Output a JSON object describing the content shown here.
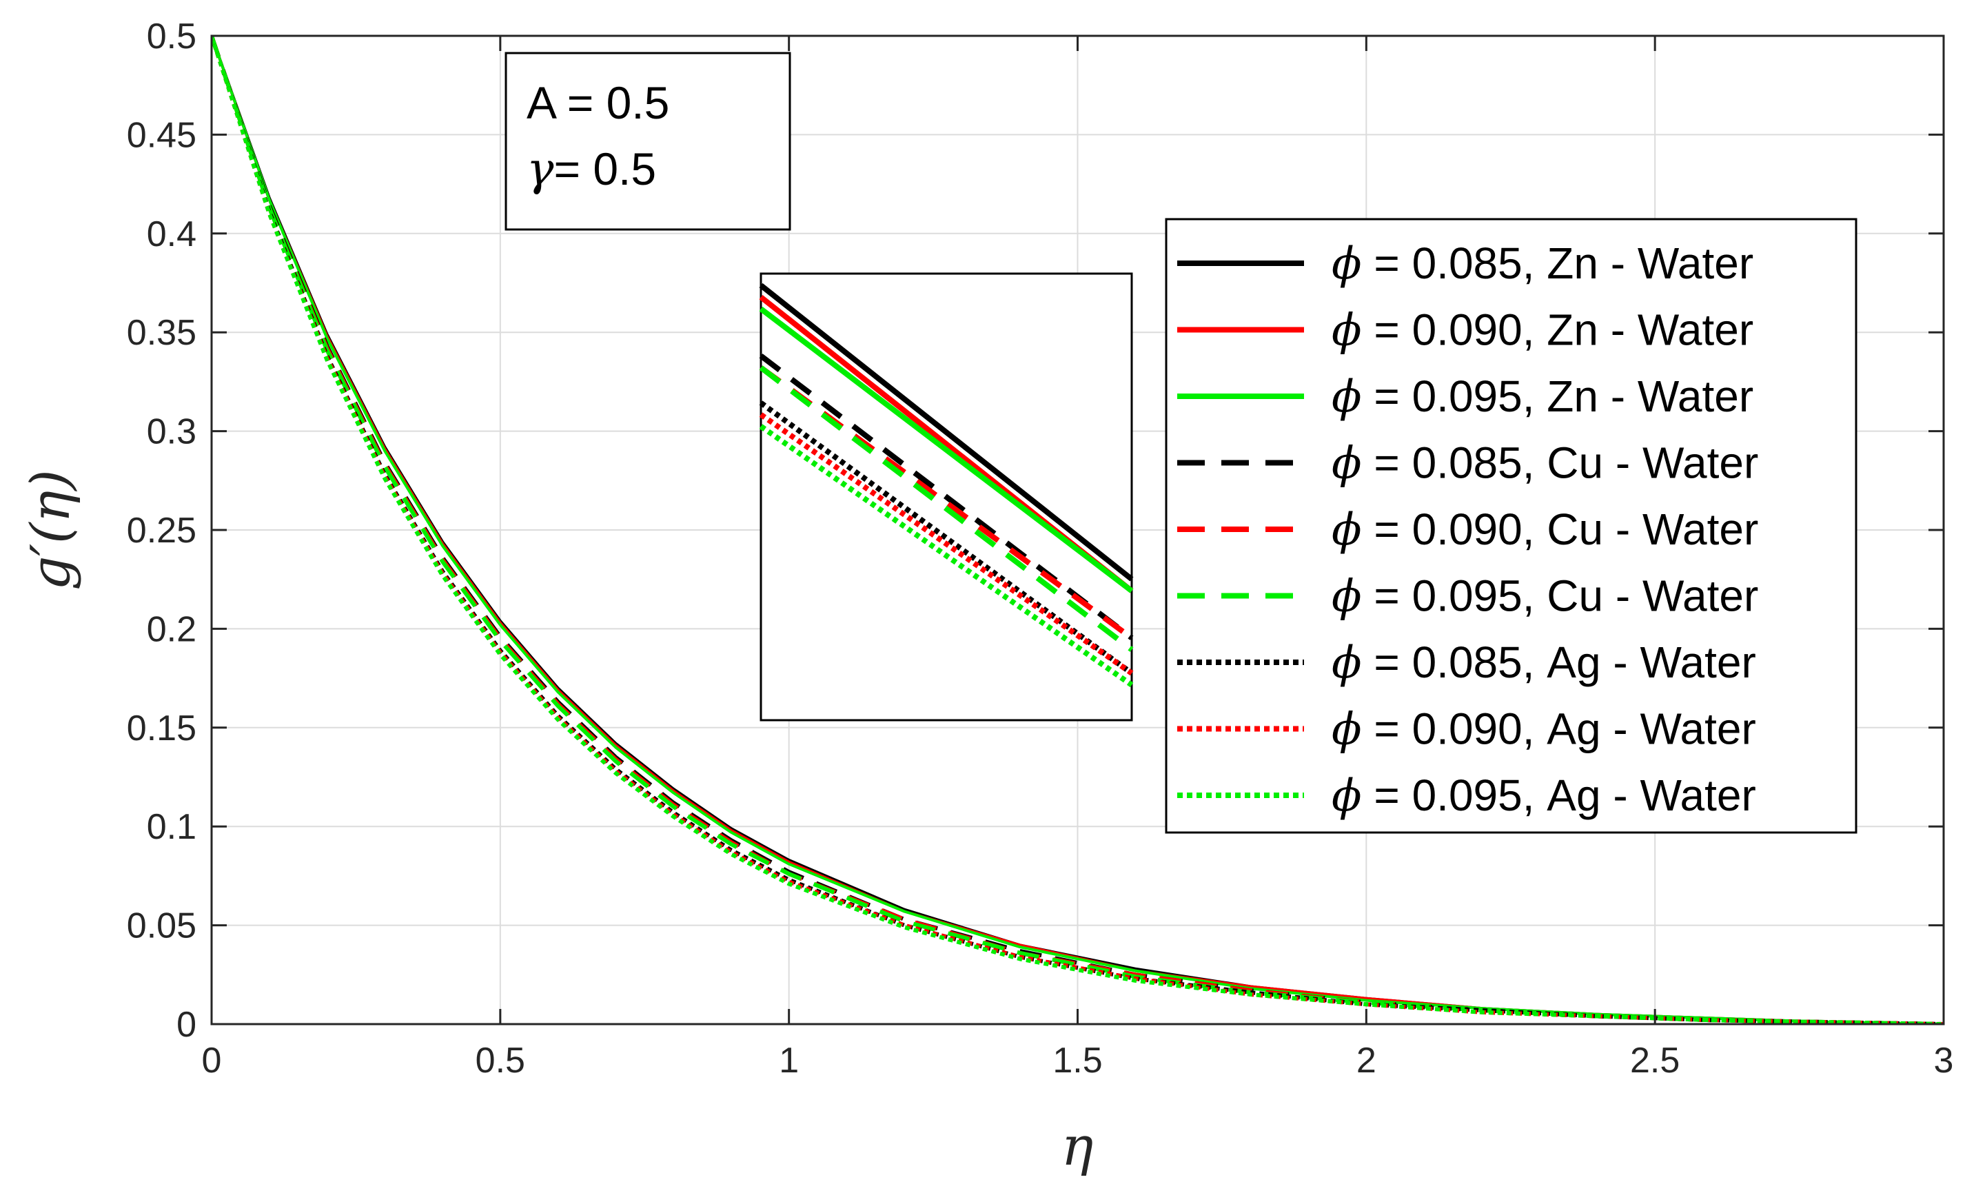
{
  "chart_data": {
    "type": "line",
    "title": "",
    "xlabel": "η",
    "ylabel": "g′(η)",
    "xlim": [
      0,
      3
    ],
    "ylim": [
      0,
      0.5
    ],
    "xticks": [
      0,
      0.5,
      1,
      1.5,
      2,
      2.5,
      3
    ],
    "xtick_labels": [
      "0",
      "0.5",
      "1",
      "1.5",
      "2",
      "2.5",
      "3"
    ],
    "yticks": [
      0,
      0.05,
      0.1,
      0.15,
      0.2,
      0.25,
      0.3,
      0.35,
      0.4,
      0.45,
      0.5
    ],
    "ytick_labels": [
      "0",
      "0.05",
      "0.1",
      "0.15",
      "0.2",
      "0.25",
      "0.3",
      "0.35",
      "0.4",
      "0.45",
      "0.5"
    ],
    "grid": true,
    "legend_position": "right",
    "x": [
      0,
      0.1,
      0.2,
      0.3,
      0.4,
      0.5,
      0.6,
      0.7,
      0.8,
      0.9,
      1.0,
      1.2,
      1.4,
      1.6,
      1.8,
      2.0,
      2.2,
      2.4,
      2.6,
      2.8,
      3.0
    ],
    "series": [
      {
        "name": "ϕ = 0.085, Zn - Water",
        "phi": "ϕ",
        "rest": " = 0.085, Zn - Water",
        "color": "#000000",
        "style": "solid",
        "values": [
          0.5,
          0.418,
          0.349,
          0.292,
          0.244,
          0.204,
          0.17,
          0.142,
          0.119,
          0.099,
          0.083,
          0.058,
          0.04,
          0.028,
          0.019,
          0.013,
          0.008,
          0.005,
          0.003,
          0.001,
          0.0
        ]
      },
      {
        "name": "ϕ = 0.090, Zn - Water",
        "phi": "ϕ",
        "rest": " = 0.090, Zn - Water",
        "color": "#ff0000",
        "style": "solid",
        "values": [
          0.5,
          0.417,
          0.348,
          0.291,
          0.243,
          0.203,
          0.169,
          0.141,
          0.118,
          0.098,
          0.082,
          0.057,
          0.04,
          0.027,
          0.019,
          0.013,
          0.008,
          0.005,
          0.003,
          0.001,
          0.0
        ]
      },
      {
        "name": "ϕ = 0.095, Zn - Water",
        "phi": "ϕ",
        "rest": " = 0.095, Zn - Water",
        "color": "#00ee00",
        "style": "solid",
        "values": [
          0.5,
          0.417,
          0.347,
          0.29,
          0.242,
          0.202,
          0.168,
          0.14,
          0.117,
          0.097,
          0.081,
          0.057,
          0.039,
          0.027,
          0.018,
          0.012,
          0.008,
          0.005,
          0.003,
          0.001,
          0.0
        ]
      },
      {
        "name": "ϕ = 0.085, Cu - Water",
        "phi": "ϕ",
        "rest": " = 0.085, Cu - Water",
        "color": "#000000",
        "style": "dashed",
        "values": [
          0.5,
          0.414,
          0.343,
          0.284,
          0.236,
          0.196,
          0.163,
          0.135,
          0.112,
          0.093,
          0.077,
          0.053,
          0.037,
          0.025,
          0.017,
          0.011,
          0.007,
          0.004,
          0.002,
          0.001,
          0.0
        ]
      },
      {
        "name": "ϕ = 0.090, Cu - Water",
        "phi": "ϕ",
        "rest": " = 0.090, Cu - Water",
        "color": "#ff0000",
        "style": "dashed",
        "values": [
          0.5,
          0.413,
          0.342,
          0.283,
          0.235,
          0.195,
          0.162,
          0.134,
          0.111,
          0.092,
          0.076,
          0.053,
          0.036,
          0.025,
          0.017,
          0.011,
          0.007,
          0.004,
          0.002,
          0.001,
          0.0
        ]
      },
      {
        "name": "ϕ = 0.095, Cu - Water",
        "phi": "ϕ",
        "rest": " = 0.095, Cu - Water",
        "color": "#00ee00",
        "style": "dashed",
        "values": [
          0.5,
          0.413,
          0.341,
          0.282,
          0.234,
          0.194,
          0.161,
          0.133,
          0.11,
          0.091,
          0.076,
          0.052,
          0.036,
          0.024,
          0.016,
          0.011,
          0.007,
          0.004,
          0.002,
          0.001,
          0.0
        ]
      },
      {
        "name": "ϕ = 0.085, Ag - Water",
        "phi": "ϕ",
        "rest": " = 0.085, Ag - Water",
        "color": "#000000",
        "style": "dotted",
        "values": [
          0.5,
          0.411,
          0.338,
          0.278,
          0.229,
          0.189,
          0.156,
          0.129,
          0.107,
          0.088,
          0.073,
          0.05,
          0.034,
          0.023,
          0.016,
          0.01,
          0.007,
          0.004,
          0.002,
          0.001,
          0.0
        ]
      },
      {
        "name": "ϕ = 0.090, Ag - Water",
        "phi": "ϕ",
        "rest": " = 0.090, Ag - Water",
        "color": "#ff0000",
        "style": "dotted",
        "values": [
          0.5,
          0.41,
          0.337,
          0.277,
          0.228,
          0.188,
          0.155,
          0.128,
          0.106,
          0.087,
          0.072,
          0.05,
          0.034,
          0.023,
          0.015,
          0.01,
          0.006,
          0.004,
          0.002,
          0.001,
          0.0
        ]
      },
      {
        "name": "ϕ = 0.095, Ag - Water",
        "phi": "ϕ",
        "rest": " = 0.095, Ag - Water",
        "color": "#00ee00",
        "style": "dotted",
        "values": [
          0.5,
          0.41,
          0.336,
          0.276,
          0.227,
          0.187,
          0.154,
          0.127,
          0.105,
          0.086,
          0.071,
          0.049,
          0.033,
          0.022,
          0.015,
          0.01,
          0.006,
          0.004,
          0.002,
          0.001,
          0.0
        ]
      }
    ],
    "annotation": {
      "line1": "A = 0.5",
      "gamma_symbol": "γ",
      "line2_rest": "= 0.5"
    }
  }
}
